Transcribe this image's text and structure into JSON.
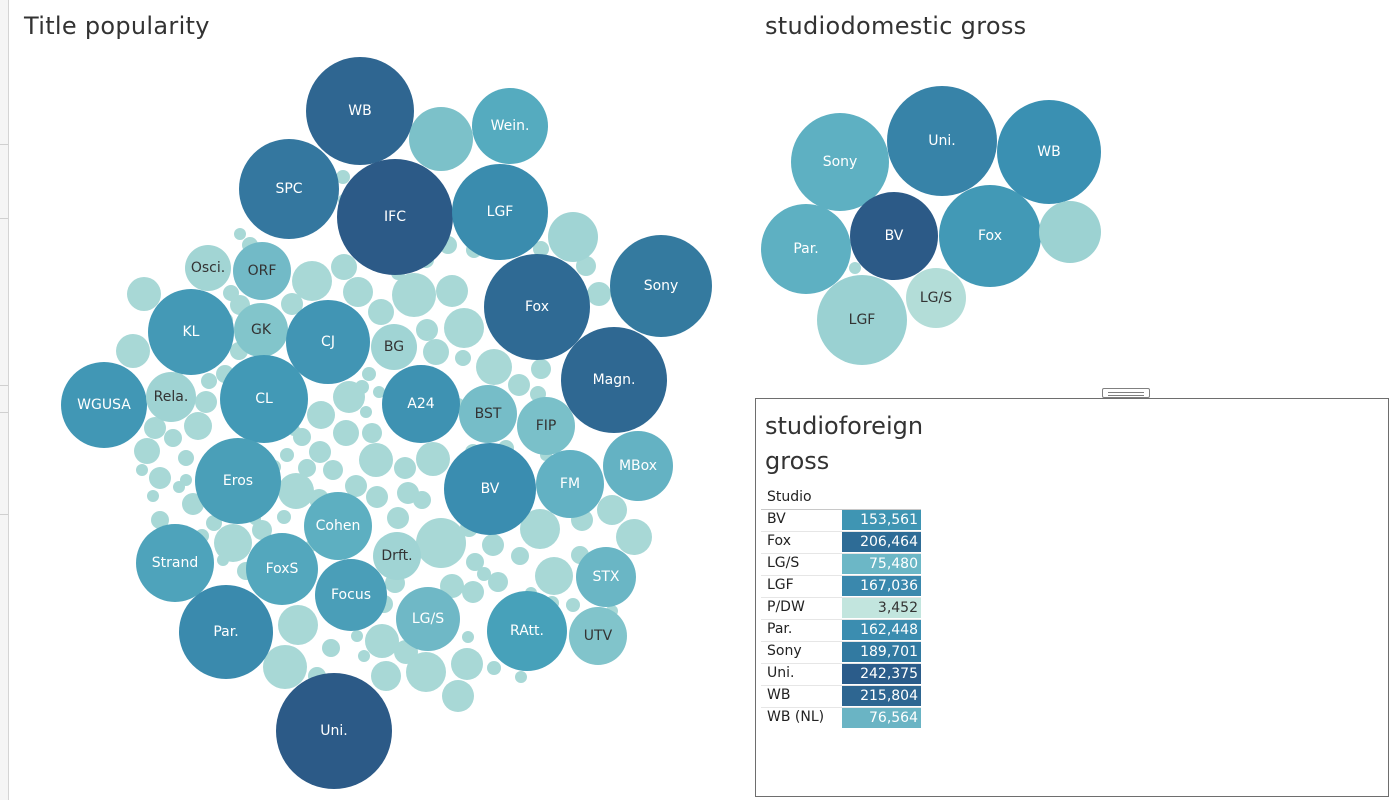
{
  "sheets": {
    "title_popularity": "Title popularity",
    "domestic_gross": "studiodomestic gross",
    "foreign_gross": "studioforeign gross"
  },
  "foreign_table": {
    "column_header": "Studio",
    "rows": [
      {
        "studio": "BV",
        "value": "153,561",
        "color": "#3f95b3"
      },
      {
        "studio": "Fox",
        "value": "206,464",
        "color": "#2e6c96"
      },
      {
        "studio": "LG/S",
        "value": "75,480",
        "color": "#6cb7c6"
      },
      {
        "studio": "LGF",
        "value": "167,036",
        "color": "#3a88ad"
      },
      {
        "studio": "P/DW",
        "value": "3,452",
        "color": "#c2e5de"
      },
      {
        "studio": "Par.",
        "value": "162,448",
        "color": "#3b8db0"
      },
      {
        "studio": "Sony",
        "value": "189,701",
        "color": "#327aa1"
      },
      {
        "studio": "Uni.",
        "value": "242,375",
        "color": "#2b5c8a"
      },
      {
        "studio": "WB",
        "value": "215,804",
        "color": "#2e6691"
      },
      {
        "studio": "WB (NL)",
        "value": "76,564",
        "color": "#6ab4c4"
      }
    ]
  },
  "popularity_bubbles": [
    {
      "label": "WB",
      "color": "#2f6691"
    },
    {
      "label": "Wein.",
      "color": "#55abbf"
    },
    {
      "label": "",
      "color": "#7cc1c9"
    },
    {
      "label": "SPC",
      "color": "#34779f"
    },
    {
      "label": "IFC",
      "color": "#2c5a87"
    },
    {
      "label": "LGF",
      "color": "#3a8cae"
    },
    {
      "label": "",
      "color": "#a0d4d4"
    },
    {
      "label": "Osci.",
      "color": "#a2d5d4"
    },
    {
      "label": "ORF",
      "color": "#72bac7"
    },
    {
      "label": "Fox",
      "color": "#2f6a94"
    },
    {
      "label": "Sony",
      "color": "#347a9f"
    },
    {
      "label": "KL",
      "color": "#4499b6"
    },
    {
      "label": "GK",
      "color": "#82c5cb"
    },
    {
      "label": "CJ",
      "color": "#4195b4"
    },
    {
      "label": "BG",
      "color": "#a0d4d4"
    },
    {
      "label": "Magn.",
      "color": "#2f6892"
    },
    {
      "label": "WGUSA",
      "color": "#4197b5"
    },
    {
      "label": "Rela.",
      "color": "#9fd3d3"
    },
    {
      "label": "CL",
      "color": "#4299b6"
    },
    {
      "label": "A24",
      "color": "#3e92b2"
    },
    {
      "label": "BST",
      "color": "#76bdc8"
    },
    {
      "label": "FIP",
      "color": "#7ac0c9"
    },
    {
      "label": "MBox",
      "color": "#64b2c3"
    },
    {
      "label": "Eros",
      "color": "#4a9fb8"
    },
    {
      "label": "BV",
      "color": "#3a8db0"
    },
    {
      "label": "FM",
      "color": "#62b1c3"
    },
    {
      "label": "Cohen",
      "color": "#5dafc1"
    },
    {
      "label": "Drft.",
      "color": "#a0d4d4"
    },
    {
      "label": "Strand",
      "color": "#4ea3bb"
    },
    {
      "label": "FoxS",
      "color": "#53a7bd"
    },
    {
      "label": "Focus",
      "color": "#4a9eb8"
    },
    {
      "label": "LG/S",
      "color": "#6fb8c6"
    },
    {
      "label": "RAtt.",
      "color": "#47a1ba"
    },
    {
      "label": "STX",
      "color": "#6ab6c5"
    },
    {
      "label": "UTV",
      "color": "#81c4cb"
    },
    {
      "label": "Par.",
      "color": "#3a8aad"
    },
    {
      "label": "Uni.",
      "color": "#2c5a87"
    }
  ],
  "domestic_bubbles": [
    {
      "label": "Sony",
      "color": "#5eb0c2"
    },
    {
      "label": "Uni.",
      "color": "#3783a8"
    },
    {
      "label": "WB",
      "color": "#3a90b2"
    },
    {
      "label": "Par.",
      "color": "#5eb0c2"
    },
    {
      "label": "BV",
      "color": "#2c5a87"
    },
    {
      "label": "Fox",
      "color": "#4299b6"
    },
    {
      "label": "",
      "color": "#9cd2d2"
    },
    {
      "label": "LG/S",
      "color": "#b3ddd8"
    },
    {
      "label": "LGF",
      "color": "#9ad1d2"
    }
  ],
  "palette": {
    "small_bubble": "#a8d8d6",
    "dark_text": "#333333",
    "light_text": "#ffffff"
  }
}
